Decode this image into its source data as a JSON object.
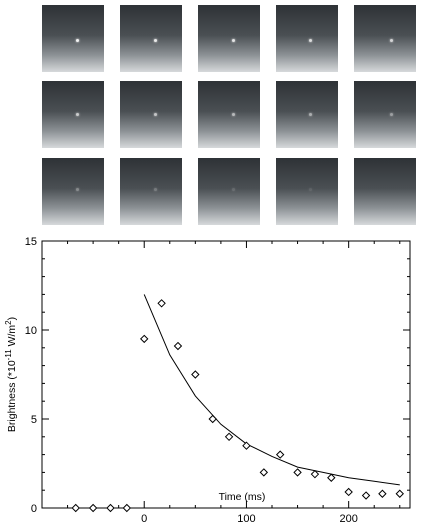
{
  "image_strip": {
    "rows": 3,
    "columns": 5,
    "frame_spot_brightness": [
      1.0,
      0.95,
      0.9,
      0.85,
      0.8,
      0.75,
      0.7,
      0.62,
      0.55,
      0.45,
      0.35,
      0.25,
      0.15,
      0.1,
      0.05
    ]
  },
  "chart_data": {
    "type": "scatter",
    "title": "",
    "xlabel": "Time (ms)",
    "ylabel_parts": {
      "prefix": "Brightness (*10",
      "exponent": "-11",
      "middle": " W/m",
      "unit_exponent": "2",
      "suffix": ")"
    },
    "xlim": [
      -100,
      260
    ],
    "ylim": [
      0,
      15
    ],
    "xticks": [
      0,
      100,
      200
    ],
    "xtick_labels": [
      "0",
      "100",
      "200"
    ],
    "yticks": [
      0,
      5,
      10,
      15
    ],
    "ytick_labels": [
      "0",
      "5",
      "10",
      "15"
    ],
    "series": [
      {
        "marker": "diamond",
        "x": [
          -67,
          -50,
          -33,
          -17,
          0,
          17,
          33,
          50,
          67,
          83,
          100,
          117,
          133,
          150,
          167,
          183,
          200,
          217,
          233,
          250
        ],
        "y": [
          0,
          0,
          0,
          0,
          9.5,
          11.5,
          9.1,
          7.5,
          5.0,
          4.0,
          3.5,
          2.0,
          3.0,
          2.0,
          1.9,
          1.7,
          0.9,
          0.7,
          0.8,
          0.8
        ]
      }
    ],
    "fit_curve": {
      "x": [
        0,
        25,
        50,
        75,
        100,
        125,
        150,
        175,
        200,
        225,
        250
      ],
      "y": [
        12.0,
        8.6,
        6.3,
        4.7,
        3.6,
        2.9,
        2.3,
        2.0,
        1.7,
        1.5,
        1.3
      ]
    },
    "colors": {
      "marker": "#000000",
      "curve": "#000000",
      "axes": "#000000"
    }
  }
}
